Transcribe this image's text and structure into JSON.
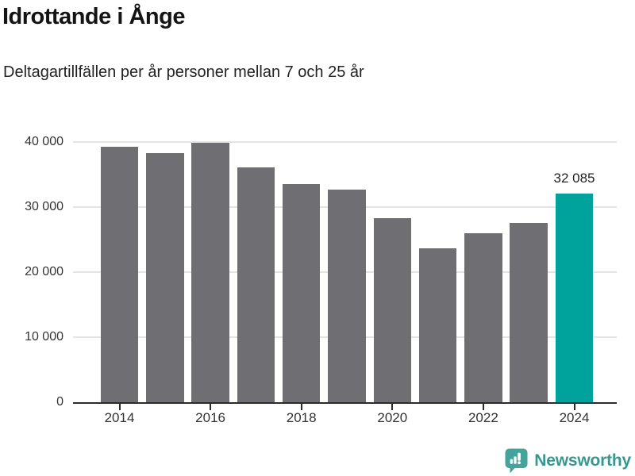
{
  "header": {
    "title": "Idrottande i Ånge",
    "subtitle": "Deltagartillfällen per år personer mellan 7 och 25 år"
  },
  "chart_data": {
    "type": "bar",
    "title": "Idrottande i Ånge",
    "subtitle": "Deltagartillfällen per år personer mellan 7 och 25 år",
    "categories": [
      "2014",
      "2015",
      "2016",
      "2017",
      "2018",
      "2019",
      "2020",
      "2021",
      "2022",
      "2023",
      "2024"
    ],
    "values": [
      39300,
      38300,
      39900,
      36100,
      33500,
      32700,
      28300,
      23700,
      26000,
      27600,
      32085
    ],
    "highlight": {
      "category": "2024",
      "value": 32085,
      "label": "32 085"
    },
    "xlabel": "",
    "ylabel": "",
    "ylim": [
      0,
      40000
    ],
    "ytick_values": [
      0,
      10000,
      20000,
      30000,
      40000
    ],
    "ytick_labels": [
      "0",
      "10 000",
      "20 000",
      "30 000",
      "40 000"
    ],
    "xtick_labels": [
      "2014",
      "2016",
      "2018",
      "2020",
      "2022",
      "2024"
    ],
    "grid": "horizontal",
    "legend": "none",
    "colors": {
      "bar": "#6f6e73",
      "highlight": "#00a39b",
      "gridline": "#e4e4e4",
      "axis": "#2b2b2b",
      "tick_text": "#333333",
      "value_label": "#222222"
    }
  },
  "footer": {
    "brand": "Newsworthy",
    "brand_color": "#38978f",
    "icon": "newsworthy-speech-bubble-barchart-icon",
    "icon_color": "#44a39b"
  }
}
